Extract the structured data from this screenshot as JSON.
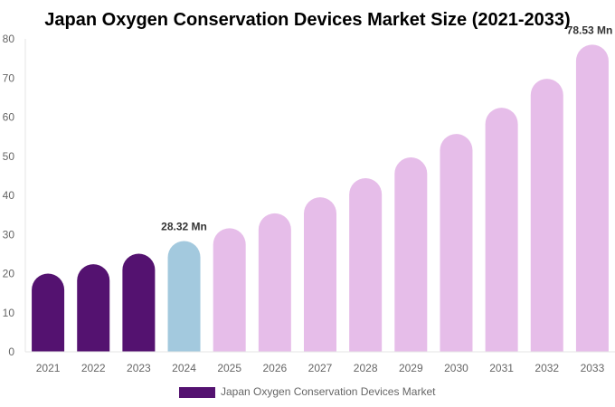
{
  "chart_data": {
    "type": "bar",
    "title": "Japan Oxygen Conservation Devices Market Size (2021-2033)",
    "xlabel": "",
    "ylabel": "",
    "ylim": [
      0,
      80
    ],
    "yticks": [
      0,
      10,
      20,
      30,
      40,
      50,
      60,
      70,
      80
    ],
    "grid": false,
    "legend_position": "bottom",
    "categories": [
      "2021",
      "2022",
      "2023",
      "2024",
      "2025",
      "2026",
      "2027",
      "2028",
      "2029",
      "2030",
      "2031",
      "2032",
      "2033"
    ],
    "series": [
      {
        "name": "Japan Oxygen Conservation Devices Market",
        "values": [
          20.0,
          22.4,
          25.1,
          28.32,
          31.6,
          35.4,
          39.5,
          44.4,
          49.7,
          55.7,
          62.4,
          69.8,
          78.53
        ]
      }
    ],
    "bar_colors": [
      "#541270",
      "#541270",
      "#541270",
      "#a3c9de",
      "#e6bde9",
      "#e6bde9",
      "#e6bde9",
      "#e6bde9",
      "#e6bde9",
      "#e6bde9",
      "#e6bde9",
      "#e6bde9",
      "#e6bde9"
    ],
    "legend_color": "#541270",
    "data_labels": [
      {
        "category": "2024",
        "text": "28.32 Mn"
      },
      {
        "category": "2033",
        "text": "78.53 Mn"
      }
    ]
  }
}
